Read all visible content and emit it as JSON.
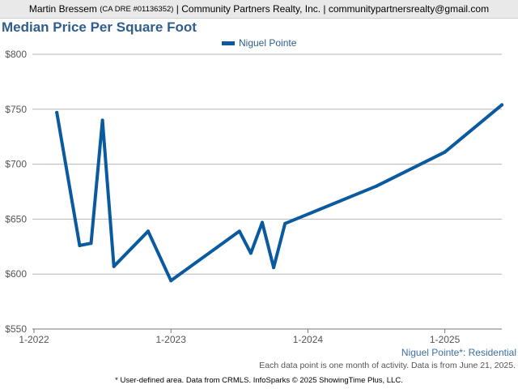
{
  "header": {
    "agent_name": "Martin Bressem",
    "license": "(CA DRE #01136352)",
    "company": "| Community Partners Realty, Inc. | communitypartnersrealty@gmail.com"
  },
  "footer": {
    "area_label": "Niguel Pointe*: Residential",
    "source_note": "Each data point is one month of activity. Data is from June 21, 2025.",
    "disclaimer": "* User-defined area. Data from CRMLS. InfoSparks © 2025 ShowingTime Plus, LLC."
  },
  "colors": {
    "series": "#0a5aa0",
    "grid": "#b5b5b5",
    "title": "#2f5e8e"
  },
  "chart_data": {
    "type": "line",
    "title": "Median Price Per Square Foot",
    "legend_position": "top-center",
    "grid": true,
    "ylim": [
      550,
      800
    ],
    "xlim": [
      "2022-01",
      "2025-06"
    ],
    "yticks": [
      {
        "value": 550,
        "label": "$550"
      },
      {
        "value": 600,
        "label": "$600"
      },
      {
        "value": 650,
        "label": "$650"
      },
      {
        "value": 700,
        "label": "$700"
      },
      {
        "value": 750,
        "label": "$750"
      },
      {
        "value": 800,
        "label": "$800"
      }
    ],
    "xticks": [
      {
        "value": "2022-01",
        "label": "1-2022"
      },
      {
        "value": "2023-01",
        "label": "1-2023"
      },
      {
        "value": "2024-01",
        "label": "1-2024"
      },
      {
        "value": "2025-01",
        "label": "1-2025"
      }
    ],
    "series": [
      {
        "name": "Niguel Pointe",
        "points": [
          {
            "x": "2022-03",
            "y": 747
          },
          {
            "x": "2022-05",
            "y": 626
          },
          {
            "x": "2022-06",
            "y": 628
          },
          {
            "x": "2022-07",
            "y": 740
          },
          {
            "x": "2022-08",
            "y": 607
          },
          {
            "x": "2022-11",
            "y": 639
          },
          {
            "x": "2023-01",
            "y": 594
          },
          {
            "x": "2023-07",
            "y": 639
          },
          {
            "x": "2023-08",
            "y": 619
          },
          {
            "x": "2023-09",
            "y": 647
          },
          {
            "x": "2023-10",
            "y": 606
          },
          {
            "x": "2023-11",
            "y": 646
          },
          {
            "x": "2024-07",
            "y": 680
          },
          {
            "x": "2025-01",
            "y": 711
          },
          {
            "x": "2025-06",
            "y": 754
          }
        ]
      }
    ]
  }
}
